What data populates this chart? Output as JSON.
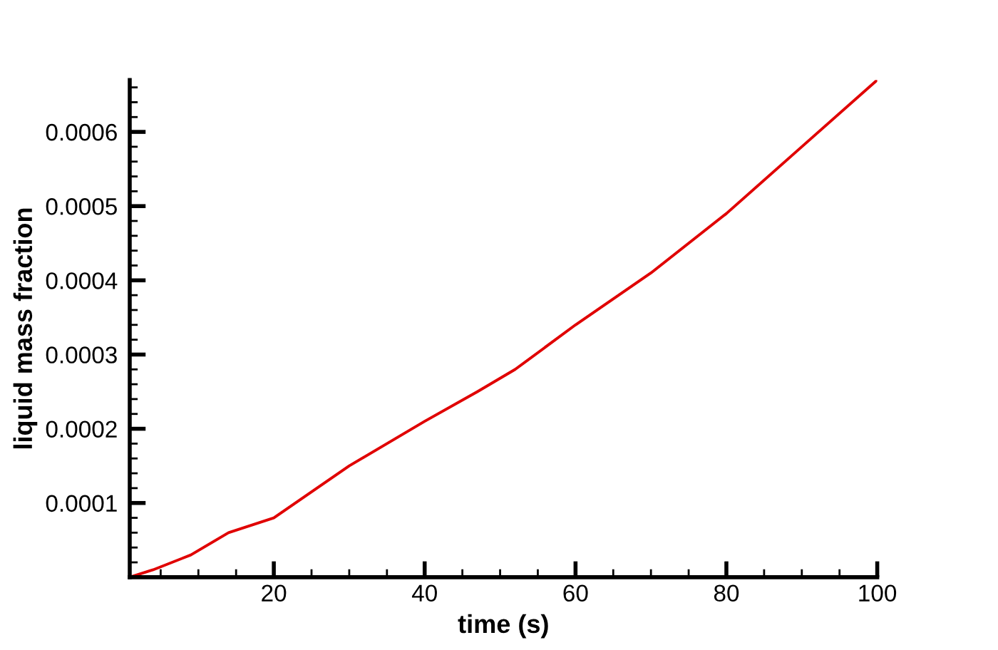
{
  "chart_data": {
    "type": "line",
    "xlabel": "time (s)",
    "ylabel": "liquid mass fraction",
    "series": [
      {
        "color": "#e00000",
        "x": [
          0.9,
          4,
          9,
          14,
          20,
          30,
          40,
          47,
          52,
          60,
          70,
          80,
          90,
          100
        ],
        "values": [
          0,
          1e-05,
          3e-05,
          6e-05,
          8e-05,
          0.00015,
          0.00021,
          0.00025,
          0.00028,
          0.00034,
          0.00041,
          0.00049,
          0.00058,
          0.00067
        ]
      }
    ],
    "xlim": [
      0.9,
      100
    ],
    "ylim": [
      0,
      0.00067
    ],
    "xticks": [
      {
        "value": 5,
        "label": null
      },
      {
        "value": 10,
        "label": null
      },
      {
        "value": 15,
        "label": null
      },
      20,
      {
        "value": 25,
        "label": null
      },
      {
        "value": 30,
        "label": null
      },
      {
        "value": 35,
        "label": null
      },
      40,
      {
        "value": 45,
        "label": null
      },
      {
        "value": 50,
        "label": null
      },
      {
        "value": 55,
        "label": null
      },
      60,
      {
        "value": 65,
        "label": null
      },
      {
        "value": 70,
        "label": null
      },
      {
        "value": 75,
        "label": null
      },
      80,
      {
        "value": 85,
        "label": null
      },
      {
        "value": 90,
        "label": null
      },
      {
        "value": 95,
        "label": null
      },
      100
    ],
    "yticks": [
      {
        "value": 2e-05,
        "label": null
      },
      {
        "value": 4e-05,
        "label": null
      },
      {
        "value": 6e-05,
        "label": null
      },
      {
        "value": 8e-05,
        "label": null
      },
      0.0001,
      {
        "value": 0.00012,
        "label": null
      },
      {
        "value": 0.00014,
        "label": null
      },
      {
        "value": 0.00016,
        "label": null
      },
      {
        "value": 0.00018,
        "label": null
      },
      0.0002,
      {
        "value": 0.00022,
        "label": null
      },
      {
        "value": 0.00024,
        "label": null
      },
      {
        "value": 0.00026,
        "label": null
      },
      {
        "value": 0.00028,
        "label": null
      },
      0.0003,
      {
        "value": 0.00032,
        "label": null
      },
      {
        "value": 0.00034,
        "label": null
      },
      {
        "value": 0.00036,
        "label": null
      },
      {
        "value": 0.00038,
        "label": null
      },
      0.0004,
      {
        "value": 0.00042,
        "label": null
      },
      {
        "value": 0.00044,
        "label": null
      },
      {
        "value": 0.00046,
        "label": null
      },
      {
        "value": 0.00048,
        "label": null
      },
      0.0005,
      {
        "value": 0.00052,
        "label": null
      },
      {
        "value": 0.00054,
        "label": null
      },
      {
        "value": 0.00056,
        "label": null
      },
      {
        "value": 0.00058,
        "label": null
      },
      0.0006,
      {
        "value": 0.00062,
        "label": null
      },
      {
        "value": 0.00064,
        "label": null
      },
      {
        "value": 0.00066,
        "label": null
      }
    ],
    "marker": "none",
    "line_style": "solid"
  }
}
